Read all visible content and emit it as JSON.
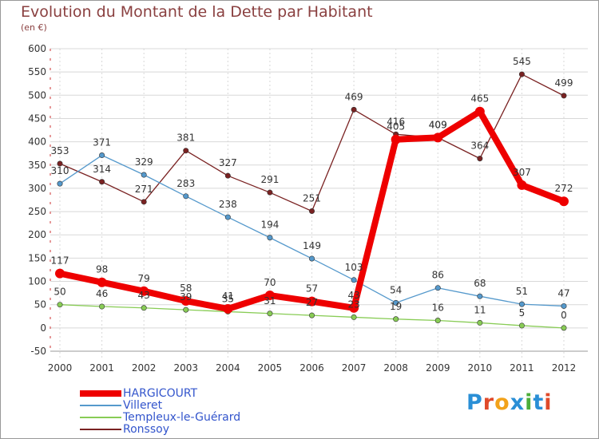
{
  "header": {
    "title": "Evolution du Montant de la Dette par Habitant",
    "subtitle": "(en €)"
  },
  "logo": {
    "letters": [
      "P",
      "r",
      "o",
      "x",
      "i",
      "t",
      "i"
    ],
    "colors": [
      "#2a8fd6",
      "#e04a2a",
      "#f2a21a",
      "#2a8fd6",
      "#4cae3a",
      "#2a8fd6",
      "#e04a2a"
    ]
  },
  "chart_data": {
    "type": "line",
    "title": "Evolution du Montant de la Dette par Habitant",
    "subtitle": "(en €)",
    "xlabel": "",
    "ylabel": "",
    "x": [
      "2000",
      "2001",
      "2002",
      "2003",
      "2004",
      "2005",
      "2006",
      "2007",
      "2008",
      "2009",
      "2010",
      "2011",
      "2012"
    ],
    "ylim": [
      -50,
      600
    ],
    "yticks": [
      -50,
      0,
      50,
      100,
      150,
      200,
      250,
      300,
      350,
      400,
      450,
      500,
      550,
      600
    ],
    "yticklabels": [
      "-50",
      "0",
      "50",
      "100",
      "150",
      "200",
      "250",
      "300",
      "350",
      "400",
      "450",
      "500",
      "550",
      "600"
    ],
    "grid": true,
    "legend_position": "bottom-left",
    "series": [
      {
        "name": "Ronssoy",
        "color": "#7a2222",
        "values": [
          353,
          314,
          271,
          381,
          327,
          291,
          251,
          469,
          416,
          409,
          364,
          545,
          499
        ],
        "labels": [
          "353",
          "314",
          "271",
          "381",
          "327",
          "291",
          "251",
          "469",
          "416",
          "409",
          "364",
          "545",
          "499"
        ]
      },
      {
        "name": "Villeret",
        "color": "#5599cc",
        "values": [
          310,
          371,
          329,
          283,
          238,
          194,
          149,
          103,
          54,
          86,
          68,
          51,
          47
        ],
        "labels": [
          "310",
          "371",
          "329",
          "283",
          "238",
          "194",
          "149",
          "103",
          "54",
          "86",
          "68",
          "51",
          "47"
        ]
      },
      {
        "name": "Templeux-le-Guérard",
        "color": "#88cc55",
        "values": [
          50,
          46,
          43,
          39,
          35,
          31,
          27,
          23,
          19,
          16,
          11,
          5,
          0
        ],
        "labels": [
          "50",
          "46",
          "43",
          "39",
          "35",
          "31",
          "27",
          "23",
          "19",
          "16",
          "11",
          "5",
          "0"
        ]
      },
      {
        "name": "HARGICOURT",
        "color": "#ee0000",
        "values": [
          117,
          98,
          79,
          58,
          41,
          70,
          57,
          43,
          405,
          409,
          465,
          307,
          272
        ],
        "labels": [
          "117",
          "98",
          "79",
          "58",
          "41",
          "70",
          "57",
          "43",
          "405",
          "409",
          "465",
          "307",
          "272"
        ]
      }
    ],
    "legend_order": [
      "HARGICOURT",
      "Villeret",
      "Templeux-le-Guérard",
      "Ronssoy"
    ]
  }
}
